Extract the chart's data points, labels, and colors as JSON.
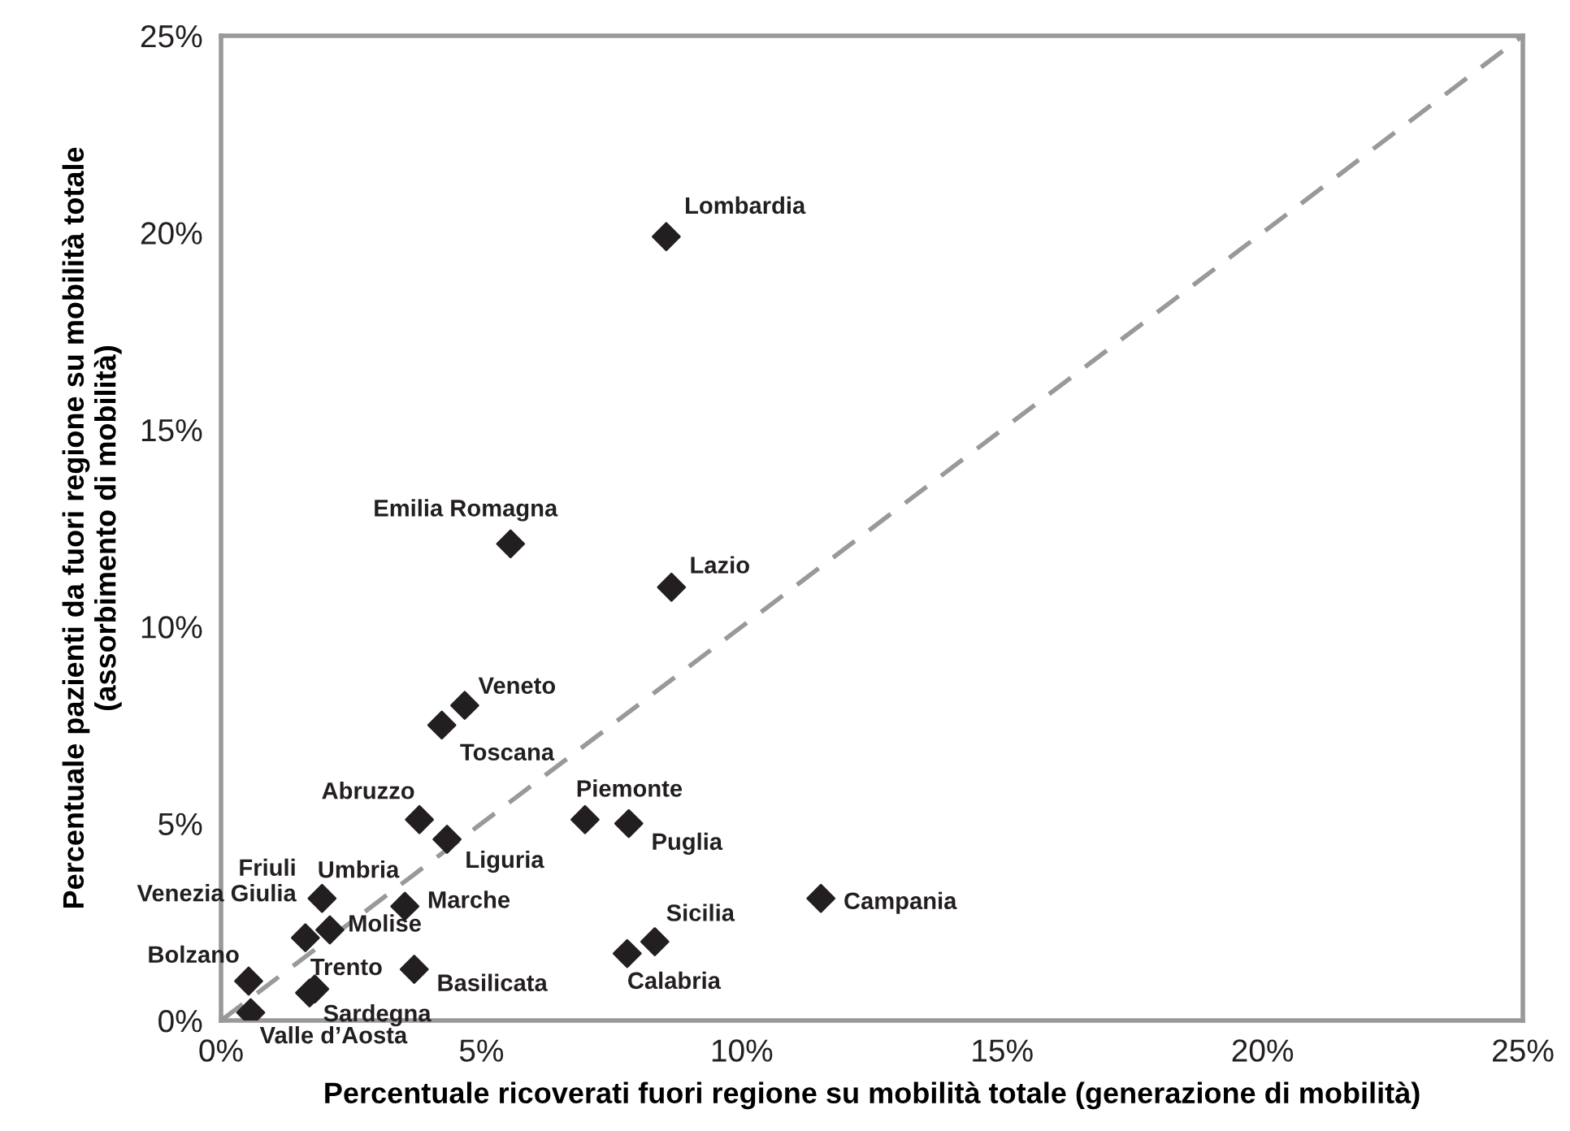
{
  "chart_data": {
    "type": "scatter",
    "xlabel": "Percentuale ricoverati fuori regione su mobilità totale (generazione di mobilità)",
    "ylabel": "Percentuale pazienti da fuori regione su mobilità totale\n(assorbimento di mobilità)",
    "xlim": [
      0,
      25
    ],
    "ylim": [
      0,
      25
    ],
    "xticks": [
      {
        "value": 0,
        "label": "0%"
      },
      {
        "value": 5,
        "label": "5%"
      },
      {
        "value": 10,
        "label": "10%"
      },
      {
        "value": 15,
        "label": "15%"
      },
      {
        "value": 20,
        "label": "20%"
      },
      {
        "value": 25,
        "label": "25%"
      }
    ],
    "yticks": [
      {
        "value": 0,
        "label": "0%"
      },
      {
        "value": 5,
        "label": "5%"
      },
      {
        "value": 10,
        "label": "10%"
      },
      {
        "value": 15,
        "label": "15%"
      },
      {
        "value": 20,
        "label": "20%"
      },
      {
        "value": 25,
        "label": "25%"
      }
    ],
    "grid": false,
    "legend": false,
    "series": [
      {
        "type": "line",
        "color": "#999999",
        "line_style": "dashed",
        "marker": "none",
        "x": [
          0,
          25
        ],
        "values": [
          0,
          25
        ]
      },
      {
        "color": "#231f20",
        "marker": "diamond",
        "x": [
          8.55,
          5.56,
          8.65,
          4.68,
          4.24,
          3.81,
          4.34,
          6.99,
          7.83,
          1.94,
          3.53,
          1.62,
          2.09,
          3.71,
          8.33,
          7.8,
          0.53,
          1.8,
          1.7,
          0.57,
          11.52
        ],
        "values": [
          19.9,
          12.1,
          11.0,
          8.0,
          7.5,
          5.1,
          4.6,
          5.1,
          5.0,
          3.1,
          2.9,
          2.1,
          2.3,
          1.3,
          2.0,
          1.7,
          1.0,
          0.8,
          0.7,
          0.2,
          3.1
        ]
      }
    ],
    "annotations": [
      {
        "text": "Lombardia",
        "x": 8.55,
        "y": 19.9
      },
      {
        "text": "Emilia Romagna",
        "x": 5.56,
        "y": 12.1
      },
      {
        "text": "Lazio",
        "x": 8.65,
        "y": 11.0
      },
      {
        "text": "Veneto",
        "x": 4.68,
        "y": 8.0
      },
      {
        "text": "Toscana",
        "x": 4.24,
        "y": 7.5
      },
      {
        "text": "Abruzzo",
        "x": 3.81,
        "y": 5.1
      },
      {
        "text": "Liguria",
        "x": 4.34,
        "y": 4.6
      },
      {
        "text": "Piemonte",
        "x": 6.99,
        "y": 5.1
      },
      {
        "text": "Puglia",
        "x": 7.83,
        "y": 5.0
      },
      {
        "text": "Umbria",
        "x": 1.94,
        "y": 3.1
      },
      {
        "text": "Marche",
        "x": 3.53,
        "y": 2.9
      },
      {
        "text": "Friuli\nVenezia Giulia",
        "x": 1.62,
        "y": 2.1
      },
      {
        "text": "Molise",
        "x": 2.09,
        "y": 2.3
      },
      {
        "text": "Basilicata",
        "x": 3.71,
        "y": 1.3
      },
      {
        "text": "Sicilia",
        "x": 8.33,
        "y": 2.0
      },
      {
        "text": "Calabria",
        "x": 7.8,
        "y": 1.7
      },
      {
        "text": "Bolzano",
        "x": 0.53,
        "y": 1.0
      },
      {
        "text": "Trento",
        "x": 1.8,
        "y": 0.8
      },
      {
        "text": "Sardegna",
        "x": 1.7,
        "y": 0.7
      },
      {
        "text": "Valle d’Aosta",
        "x": 0.57,
        "y": 0.2
      },
      {
        "text": "Campania",
        "x": 11.52,
        "y": 3.1
      }
    ]
  }
}
